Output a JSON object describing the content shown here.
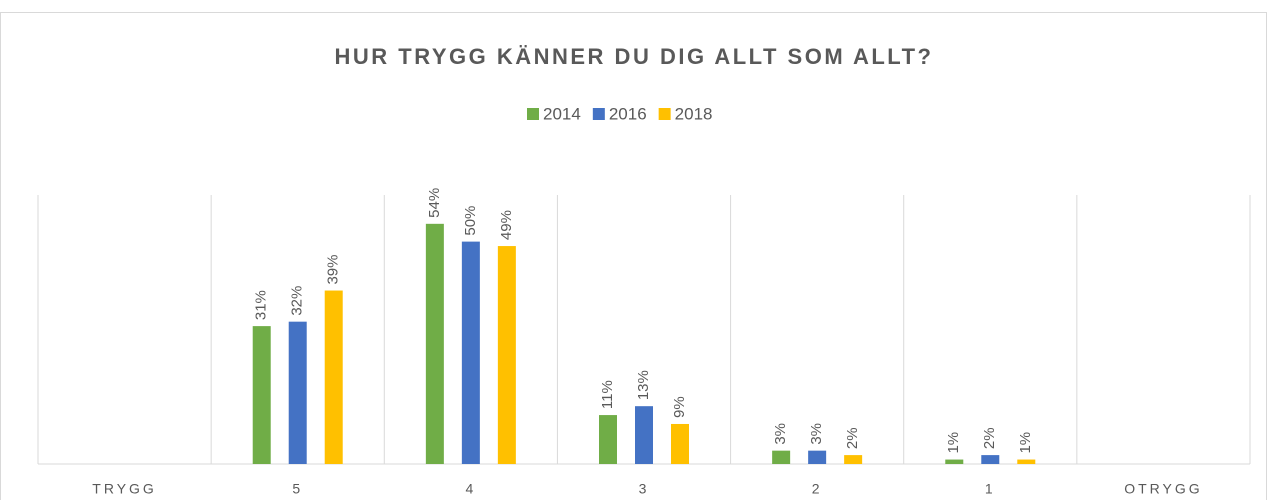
{
  "chart_data": {
    "type": "bar",
    "title": "HUR TRYGG KÄNNER DU DIG ALLT SOM ALLT?",
    "categories": [
      "TRYGG",
      "5",
      "4",
      "3",
      "2",
      "1",
      "OTRYGG"
    ],
    "series": [
      {
        "name": "2014",
        "color": "#70ad47",
        "values": [
          null,
          31,
          54,
          11,
          3,
          1,
          null
        ],
        "value_labels": [
          null,
          "31%",
          "54%",
          "11%",
          "3%",
          "1%",
          null
        ]
      },
      {
        "name": "2016",
        "color": "#4472c4",
        "values": [
          null,
          32,
          50,
          13,
          3,
          2,
          null
        ],
        "value_labels": [
          null,
          "32%",
          "50%",
          "13%",
          "3%",
          "2%",
          null
        ]
      },
      {
        "name": "2018",
        "color": "#ffc000",
        "values": [
          null,
          39,
          49,
          9,
          2,
          1,
          null
        ],
        "value_labels": [
          null,
          "39%",
          "49%",
          "9%",
          "2%",
          "1%",
          null
        ]
      }
    ],
    "legend": "top"
  }
}
